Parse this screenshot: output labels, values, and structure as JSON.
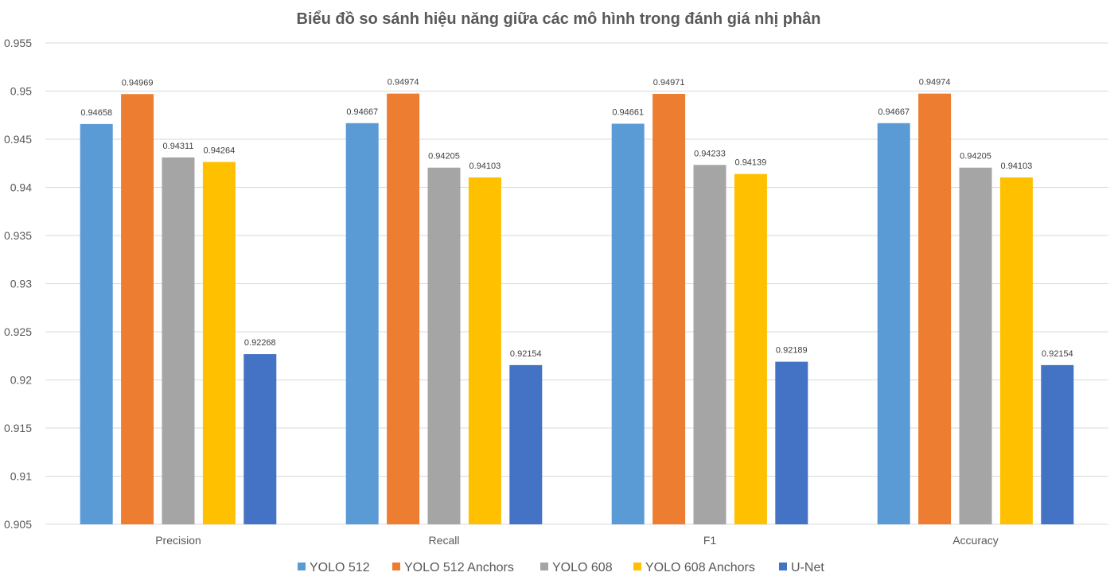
{
  "chart_data": {
    "type": "bar",
    "title": "Biểu đồ so sánh hiệu năng giữa các mô hình trong đánh giá nhị phân",
    "xlabel": "",
    "ylabel": "",
    "categories": [
      "Precision",
      "Recall",
      "F1",
      "Accuracy"
    ],
    "ylim": [
      0.905,
      0.955
    ],
    "yticks": [
      "0.905",
      "0.91",
      "0.915",
      "0.92",
      "0.925",
      "0.93",
      "0.935",
      "0.94",
      "0.945",
      "0.95",
      "0.955"
    ],
    "grid": true,
    "legend_position": "bottom",
    "series": [
      {
        "name": "YOLO 512",
        "color": "#5b9bd5",
        "values": [
          0.94658,
          0.94667,
          0.94661,
          0.94667
        ],
        "labels": [
          "0.94658",
          "0.94667",
          "0.94661",
          "0.94667"
        ]
      },
      {
        "name": "YOLO 512 Anchors",
        "color": "#ed7d31",
        "values": [
          0.94969,
          0.94974,
          0.94971,
          0.94974
        ],
        "labels": [
          "0.94969",
          "0.94974",
          "0.94971",
          "0.94974"
        ]
      },
      {
        "name": "YOLO 608",
        "color": "#a5a5a5",
        "values": [
          0.94311,
          0.94205,
          0.94233,
          0.94205
        ],
        "labels": [
          "0.94311",
          "0.94205",
          "0.94233",
          "0.94205"
        ]
      },
      {
        "name": "YOLO 608 Anchors",
        "color": "#ffc000",
        "values": [
          0.94264,
          0.94103,
          0.94139,
          0.94103
        ],
        "labels": [
          "0.94264",
          "0.94103",
          "0.94139",
          "0.94103"
        ]
      },
      {
        "name": "U-Net",
        "color": "#4472c4",
        "values": [
          0.92268,
          0.92154,
          0.92189,
          0.92154
        ],
        "labels": [
          "0.92268",
          "0.92154",
          "0.92189",
          "0.92154"
        ]
      }
    ]
  }
}
